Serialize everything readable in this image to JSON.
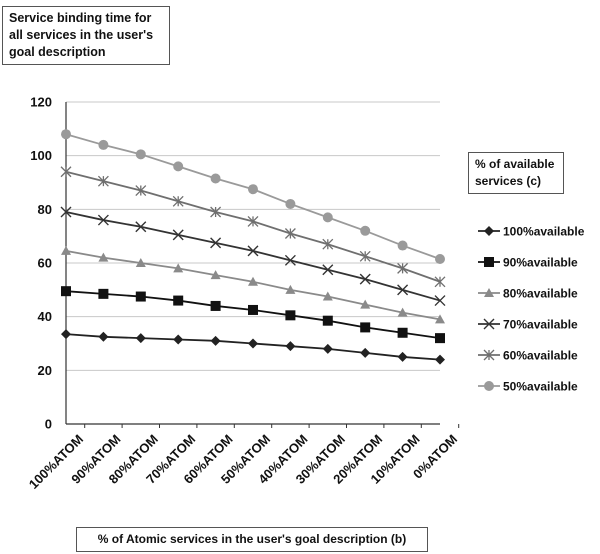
{
  "chart_data": {
    "type": "line",
    "title": "",
    "ylabel": "Service binding time for all services in the user's goal description",
    "xlabel": "% of Atomic services in the user's goal description (b)",
    "legend_title": "% of available services (c)",
    "legend_position": "right",
    "categories": [
      "100%ATOM",
      "90%ATOM",
      "80%ATOM",
      "70%ATOM",
      "60%ATOM",
      "50%ATOM",
      "40%ATOM",
      "30%ATOM",
      "20%ATOM",
      "10%ATOM",
      "0%ATOM"
    ],
    "ylim": [
      0,
      120
    ],
    "yticks": [
      0,
      20,
      40,
      60,
      80,
      100,
      120
    ],
    "grid": true,
    "series": [
      {
        "name": "100%available",
        "marker": "diamond",
        "color": "#222222",
        "values": [
          33.5,
          32.5,
          32,
          31.5,
          31,
          30,
          29,
          28,
          26.5,
          25,
          24
        ]
      },
      {
        "name": "90%available",
        "marker": "square",
        "color": "#111111",
        "values": [
          49.5,
          48.5,
          47.5,
          46,
          44,
          42.5,
          40.5,
          38.5,
          36,
          34,
          32
        ]
      },
      {
        "name": "80%available",
        "marker": "triangle",
        "color": "#8a8a8a",
        "values": [
          64.5,
          62,
          60,
          58,
          55.5,
          53,
          50,
          47.5,
          44.5,
          41.5,
          39
        ]
      },
      {
        "name": "70%available",
        "marker": "x",
        "color": "#333333",
        "values": [
          79,
          76,
          73.5,
          70.5,
          67.5,
          64.5,
          61,
          57.5,
          54,
          50,
          46
        ]
      },
      {
        "name": "60%available",
        "marker": "star",
        "color": "#6f6f6f",
        "values": [
          94,
          90.5,
          87,
          83,
          79,
          75.5,
          71,
          67,
          62.5,
          58,
          53
        ]
      },
      {
        "name": "50%available",
        "marker": "circle",
        "color": "#9a9a9a",
        "values": [
          108,
          104,
          100.5,
          96,
          91.5,
          87.5,
          82,
          77,
          72,
          66.5,
          61.5
        ]
      }
    ]
  }
}
